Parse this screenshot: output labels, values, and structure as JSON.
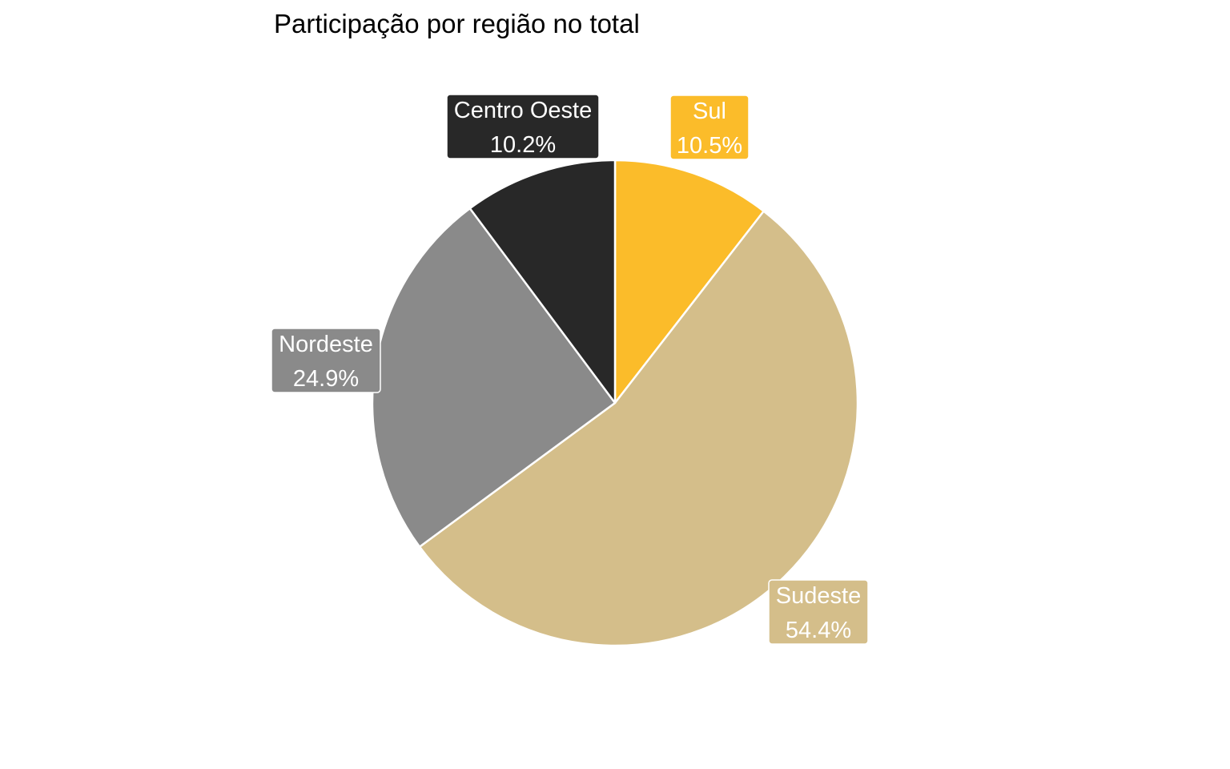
{
  "chart_data": {
    "type": "pie",
    "title": "Participação por região no total",
    "slices": [
      {
        "label": "Sul",
        "value": 10.5,
        "value_label": "10.5%",
        "color": "#FBBC2A"
      },
      {
        "label": "Sudeste",
        "value": 54.4,
        "value_label": "54.4%",
        "color": "#D4BE8A"
      },
      {
        "label": "Nordeste",
        "value": 24.9,
        "value_label": "24.9%",
        "color": "#8A8A8A"
      },
      {
        "label": "Centro Oeste",
        "value": 10.2,
        "value_label": "10.2%",
        "color": "#282828"
      }
    ],
    "start_angle": "12 o'clock",
    "direction": "clockwise",
    "slice_border_color": "#FFFFFF",
    "label_text_color": "#FFFFFF"
  }
}
